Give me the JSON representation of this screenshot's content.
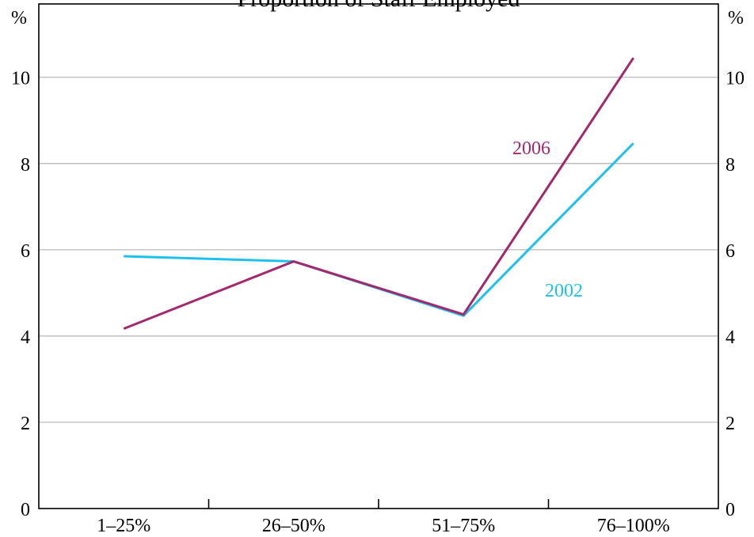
{
  "chart_data": {
    "type": "line",
    "title": "Proportion of Staff Employed",
    "ylabel_left": "%",
    "ylabel_right": "%",
    "categories": [
      "1–25%",
      "26–50%",
      "51–75%",
      "76–100%"
    ],
    "ylim": [
      0,
      11.7
    ],
    "yticks": [
      0,
      2,
      4,
      6,
      8,
      10
    ],
    "ytick_labels": [
      "0",
      "2",
      "4",
      "6",
      "8",
      "10"
    ],
    "grid": true,
    "series": [
      {
        "name": "2002",
        "color": "#1ec0ec",
        "values": [
          5.85,
          5.73,
          4.47,
          8.47
        ]
      },
      {
        "name": "2006",
        "color": "#a3286c",
        "values": [
          4.17,
          5.73,
          4.5,
          10.45
        ]
      }
    ]
  }
}
